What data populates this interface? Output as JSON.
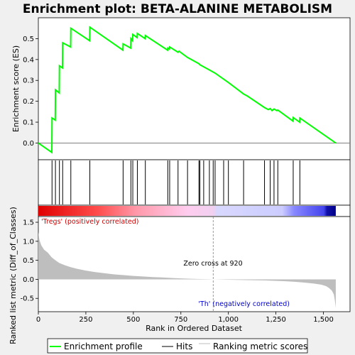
{
  "title": "Enrichment plot: BETA-ALANINE METABOLISM",
  "colors": {
    "enrichment_line": "#00ff00",
    "hits": "#000000",
    "metric_fill": "#bebebe",
    "zero_cross": "#808080",
    "positive_label": "#cc0000",
    "negative_label": "#0000cc"
  },
  "chart_data": {
    "type": "line",
    "x_max": 1565,
    "xlim": [
      0,
      1640
    ],
    "x_ticks": [
      0,
      250,
      500,
      750,
      1000,
      1250,
      1500
    ],
    "x_tick_labels": [
      "0",
      "250",
      "500",
      "750",
      "1,000",
      "1,250",
      "1,500"
    ],
    "xlabel": "Rank in Ordered Dataset",
    "enrichment": {
      "ylabel": "Enrichment score (ES)",
      "ylim": [
        -0.08,
        0.6
      ],
      "y_ticks": [
        0.0,
        0.1,
        0.2,
        0.3,
        0.4,
        0.5
      ],
      "y_tick_labels": [
        "0.0",
        "0.1",
        "0.2",
        "0.3",
        "0.4",
        "0.5"
      ],
      "points": [
        [
          0,
          0.0
        ],
        [
          71,
          -0.045
        ],
        [
          72,
          0.12
        ],
        [
          89,
          0.11
        ],
        [
          90,
          0.255
        ],
        [
          110,
          0.24
        ],
        [
          111,
          0.37
        ],
        [
          127,
          0.36
        ],
        [
          128,
          0.48
        ],
        [
          170,
          0.46
        ],
        [
          171,
          0.55
        ],
        [
          270,
          0.49
        ],
        [
          271,
          0.555
        ],
        [
          445,
          0.445
        ],
        [
          446,
          0.475
        ],
        [
          486,
          0.455
        ],
        [
          487,
          0.5
        ],
        [
          496,
          0.49
        ],
        [
          497,
          0.52
        ],
        [
          520,
          0.505
        ],
        [
          521,
          0.525
        ],
        [
          562,
          0.5
        ],
        [
          563,
          0.515
        ],
        [
          680,
          0.445
        ],
        [
          681,
          0.455
        ],
        [
          690,
          0.45
        ],
        [
          691,
          0.46
        ],
        [
          735,
          0.435
        ],
        [
          740,
          0.44
        ],
        [
          785,
          0.41
        ],
        [
          845,
          0.38
        ],
        [
          850,
          0.375
        ],
        [
          870,
          0.365
        ],
        [
          900,
          0.35
        ],
        [
          930,
          0.335
        ],
        [
          1000,
          0.29
        ],
        [
          1080,
          0.235
        ],
        [
          1100,
          0.225
        ],
        [
          1190,
          0.17
        ],
        [
          1210,
          0.16
        ],
        [
          1220,
          0.165
        ],
        [
          1230,
          0.155
        ],
        [
          1240,
          0.163
        ],
        [
          1255,
          0.155
        ],
        [
          1260,
          0.158
        ],
        [
          1340,
          0.105
        ],
        [
          1341,
          0.122
        ],
        [
          1375,
          0.1
        ],
        [
          1376,
          0.12
        ],
        [
          1565,
          0.0
        ]
      ]
    },
    "hits": [
      72,
      90,
      111,
      128,
      171,
      271,
      446,
      487,
      497,
      521,
      563,
      681,
      691,
      735,
      785,
      845,
      850,
      870,
      900,
      920,
      930,
      975,
      1000,
      1080,
      1190,
      1220,
      1240,
      1260,
      1341,
      1376
    ],
    "metric": {
      "ylabel": "Ranked list metric (Diff_of_Classes)",
      "ylim": [
        -0.85,
        1.65
      ],
      "y_ticks": [
        -0.5,
        0.0,
        0.5,
        1.0,
        1.5
      ],
      "y_tick_labels": [
        "-0.5",
        "0.0",
        "0.5",
        "1.0",
        "1.5"
      ],
      "points": [
        [
          0,
          1.25
        ],
        [
          5,
          1.05
        ],
        [
          15,
          0.9
        ],
        [
          30,
          0.78
        ],
        [
          50,
          0.7
        ],
        [
          70,
          0.58
        ],
        [
          90,
          0.5
        ],
        [
          110,
          0.43
        ],
        [
          140,
          0.37
        ],
        [
          170,
          0.32
        ],
        [
          200,
          0.28
        ],
        [
          250,
          0.23
        ],
        [
          300,
          0.19
        ],
        [
          350,
          0.16
        ],
        [
          400,
          0.13
        ],
        [
          450,
          0.11
        ],
        [
          500,
          0.09
        ],
        [
          550,
          0.075
        ],
        [
          600,
          0.06
        ],
        [
          650,
          0.05
        ],
        [
          700,
          0.035
        ],
        [
          750,
          0.025
        ],
        [
          800,
          0.015
        ],
        [
          850,
          0.008
        ],
        [
          900,
          0.003
        ],
        [
          920,
          0.0
        ],
        [
          1000,
          -0.01
        ],
        [
          1100,
          -0.02
        ],
        [
          1200,
          -0.03
        ],
        [
          1300,
          -0.05
        ],
        [
          1350,
          -0.065
        ],
        [
          1400,
          -0.085
        ],
        [
          1450,
          -0.11
        ],
        [
          1490,
          -0.14
        ],
        [
          1515,
          -0.18
        ],
        [
          1530,
          -0.23
        ],
        [
          1545,
          -0.3
        ],
        [
          1555,
          -0.4
        ],
        [
          1560,
          -0.55
        ],
        [
          1565,
          -0.75
        ]
      ],
      "zero_cross": 920,
      "zero_cross_label": "Zero cross at 920",
      "positive_label": "'Tregs' (positively correlated)",
      "negative_label": "'Th' (negatively correlated)"
    },
    "legend": {
      "placement": "bottom",
      "items": [
        {
          "label": "Enrichment profile",
          "color": "#00ff00"
        },
        {
          "label": "Hits",
          "color": "#000000"
        },
        {
          "label": "Ranking metric scores",
          "color": "#bebebe"
        }
      ]
    }
  }
}
